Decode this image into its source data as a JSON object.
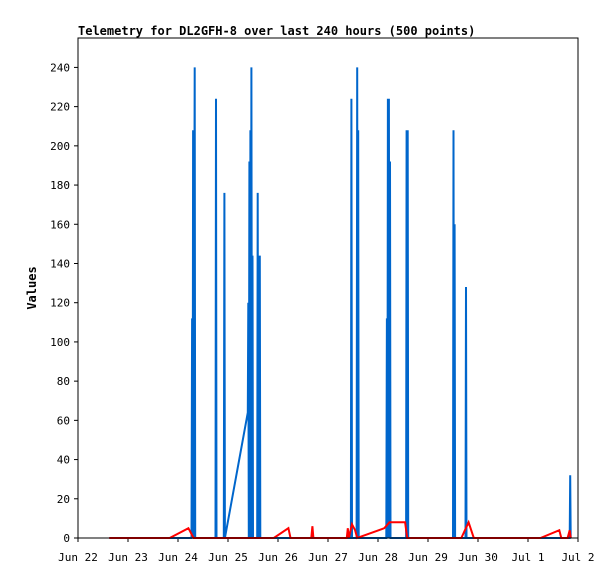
{
  "chart_data": {
    "type": "line",
    "title": "Telemetry for DL2GFH-8 over last 240 hours (500 points)",
    "xlabel": "",
    "ylabel": "Values",
    "ylim": [
      0,
      255
    ],
    "yticks": [
      0,
      20,
      40,
      60,
      80,
      100,
      120,
      140,
      160,
      180,
      200,
      220,
      240
    ],
    "x_ticks": [
      {
        "x": "2024-06-22",
        "label": "Jun 22"
      },
      {
        "x": "2024-06-23",
        "label": "Jun 23"
      },
      {
        "x": "2024-06-24",
        "label": "Jun 24"
      },
      {
        "x": "2024-06-25",
        "label": "Jun 25"
      },
      {
        "x": "2024-06-26",
        "label": "Jun 26"
      },
      {
        "x": "2024-06-27",
        "label": "Jun 27"
      },
      {
        "x": "2024-06-28",
        "label": "Jun 28"
      },
      {
        "x": "2024-06-29",
        "label": "Jun 29"
      },
      {
        "x": "2024-06-30",
        "label": "Jun 30"
      },
      {
        "x": "2024-07-01",
        "label": "Jul 1"
      },
      {
        "x": "2024-07-02",
        "label": "Jul 2"
      }
    ],
    "xlim": [
      "2024-06-22",
      "2024-07-02"
    ],
    "grid": false,
    "legend": "none",
    "series": [
      {
        "color": "#0066cc",
        "points": [
          [
            "2024-06-22 15:00",
            0
          ],
          [
            "2024-06-24 06:30",
            0
          ],
          [
            "2024-06-24 06:45",
            112
          ],
          [
            "2024-06-24 07:00",
            0
          ],
          [
            "2024-06-24 07:15",
            208
          ],
          [
            "2024-06-24 07:30",
            0
          ],
          [
            "2024-06-24 08:00",
            240
          ],
          [
            "2024-06-24 08:15",
            0
          ],
          [
            "2024-06-24 18:00",
            0
          ],
          [
            "2024-06-24 18:15",
            224
          ],
          [
            "2024-06-24 18:30",
            0
          ],
          [
            "2024-06-24 22:00",
            0
          ],
          [
            "2024-06-24 22:15",
            176
          ],
          [
            "2024-06-24 22:30",
            0
          ],
          [
            "2024-06-25 09:30",
            64
          ],
          [
            "2024-06-25 09:45",
            120
          ],
          [
            "2024-06-25 10:00",
            0
          ],
          [
            "2024-06-25 10:15",
            192
          ],
          [
            "2024-06-25 10:30",
            0
          ],
          [
            "2024-06-25 10:45",
            208
          ],
          [
            "2024-06-25 11:00",
            0
          ],
          [
            "2024-06-25 11:15",
            240
          ],
          [
            "2024-06-25 11:30",
            0
          ],
          [
            "2024-06-25 11:45",
            144
          ],
          [
            "2024-06-25 12:00",
            0
          ],
          [
            "2024-06-25 14:00",
            0
          ],
          [
            "2024-06-25 14:15",
            176
          ],
          [
            "2024-06-25 14:30",
            0
          ],
          [
            "2024-06-25 15:00",
            0
          ],
          [
            "2024-06-25 15:15",
            144
          ],
          [
            "2024-06-25 15:30",
            0
          ],
          [
            "2024-06-27 11:00",
            0
          ],
          [
            "2024-06-27 11:15",
            224
          ],
          [
            "2024-06-27 11:30",
            0
          ],
          [
            "2024-06-27 13:45",
            0
          ],
          [
            "2024-06-27 14:00",
            240
          ],
          [
            "2024-06-27 14:15",
            0
          ],
          [
            "2024-06-27 14:30",
            208
          ],
          [
            "2024-06-27 14:45",
            0
          ],
          [
            "2024-06-28 04:00",
            0
          ],
          [
            "2024-06-28 04:15",
            112
          ],
          [
            "2024-06-28 04:30",
            0
          ],
          [
            "2024-06-28 04:45",
            224
          ],
          [
            "2024-06-28 05:00",
            0
          ],
          [
            "2024-06-28 05:15",
            224
          ],
          [
            "2024-06-28 05:30",
            0
          ],
          [
            "2024-06-28 05:45",
            192
          ],
          [
            "2024-06-28 06:00",
            0
          ],
          [
            "2024-06-28 13:30",
            0
          ],
          [
            "2024-06-28 13:45",
            208
          ],
          [
            "2024-06-28 14:00",
            0
          ],
          [
            "2024-06-28 14:15",
            208
          ],
          [
            "2024-06-28 14:30",
            0
          ],
          [
            "2024-06-29 12:00",
            0
          ],
          [
            "2024-06-29 12:15",
            208
          ],
          [
            "2024-06-29 12:30",
            0
          ],
          [
            "2024-06-29 12:45",
            160
          ],
          [
            "2024-06-29 13:00",
            0
          ],
          [
            "2024-06-29 18:00",
            0
          ],
          [
            "2024-06-29 18:15",
            128
          ],
          [
            "2024-06-29 18:30",
            0
          ],
          [
            "2024-07-01 20:00",
            0
          ],
          [
            "2024-07-01 20:15",
            32
          ],
          [
            "2024-07-01 20:30",
            0
          ]
        ]
      },
      {
        "color": "#ff0000",
        "points": [
          [
            "2024-06-22 15:00",
            0
          ],
          [
            "2024-06-23 20:00",
            0
          ],
          [
            "2024-06-24 05:00",
            5
          ],
          [
            "2024-06-24 07:30",
            0
          ],
          [
            "2024-06-25 22:00",
            0
          ],
          [
            "2024-06-26 05:00",
            5
          ],
          [
            "2024-06-26 06:00",
            0
          ],
          [
            "2024-06-26 16:00",
            0
          ],
          [
            "2024-06-26 16:30",
            6
          ],
          [
            "2024-06-26 17:00",
            0
          ],
          [
            "2024-06-27 09:00",
            0
          ],
          [
            "2024-06-27 09:30",
            5
          ],
          [
            "2024-06-27 10:00",
            0
          ],
          [
            "2024-06-27 11:30",
            7
          ],
          [
            "2024-06-27 13:00",
            4
          ],
          [
            "2024-06-27 14:00",
            0
          ],
          [
            "2024-06-28 03:00",
            5
          ],
          [
            "2024-06-28 05:30",
            8
          ],
          [
            "2024-06-28 13:00",
            8
          ],
          [
            "2024-06-28 14:00",
            0
          ],
          [
            "2024-06-29 16:00",
            0
          ],
          [
            "2024-06-29 19:30",
            8
          ],
          [
            "2024-06-29 22:00",
            0
          ],
          [
            "2024-07-01 06:00",
            0
          ],
          [
            "2024-07-01 15:00",
            4
          ],
          [
            "2024-07-01 16:00",
            0
          ],
          [
            "2024-07-01 19:00",
            0
          ],
          [
            "2024-07-01 20:00",
            4
          ],
          [
            "2024-07-01 20:30",
            0
          ]
        ]
      }
    ]
  }
}
